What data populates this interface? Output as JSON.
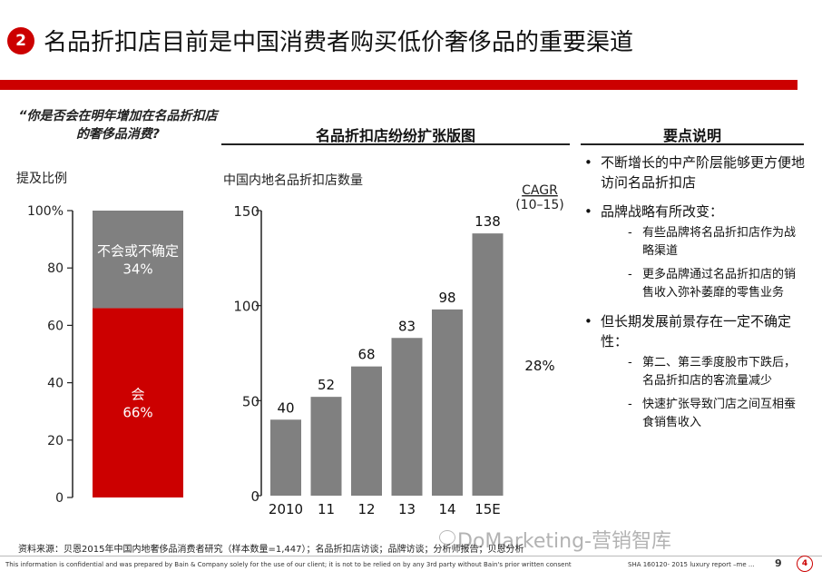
{
  "header": {
    "badge_number": "2",
    "title": "名品折扣店目前是中国消费者购买低价奢侈品的重要渠道"
  },
  "left_panel": {
    "question": "“你是否会在明年增加在名品折扣店的奢侈品消费?",
    "mention_label": "提及比例"
  },
  "middle_panel": {
    "section_title": "名品折扣店纷纷扩张版图",
    "chart_subtitle": "中国内地名品折扣店数量"
  },
  "right_panel": {
    "section_title": "要点说明",
    "bullets": [
      {
        "text": "不断增长的中产阶层能够更方便地访问名品折扣店",
        "subs": []
      },
      {
        "text": "品牌战略有所改变：",
        "subs": [
          "有些品牌将名品折扣店作为战略渠道",
          "更多品牌通过名品折扣店的销售收入弥补萎靡的零售业务"
        ]
      },
      {
        "text": "但长期发展前景存在一定不确定性：",
        "subs": [
          "第二、第三季度股市下跌后，名品折扣店的客流量减少",
          "快速扩张导致门店之间互相蚕食销售收入"
        ]
      }
    ],
    "bullet_symbol": "•",
    "dash_symbol": "-"
  },
  "footer": {
    "source": "资料来源：贝恩2015年中国内地奢侈品消费者研究（样本数量=1,447）；名品折扣店访谈；品牌访谈；分析师报告；贝恩分析",
    "disclaimer": "This information is confidential and was prepared by Bain & Company solely for the use of our client; it is not to be relied on by any 3rd party without Bain's prior written consent",
    "code": "SHA     160120- 2015 luxury report –me ...",
    "page_number": "9",
    "logo_glyph": "4",
    "watermark": "DoMarketing-营销智库"
  },
  "colors": {
    "accent": "#cc0000",
    "neutral_bar": "#808080",
    "text": "#111111"
  },
  "chart_data": [
    {
      "type": "bar",
      "stacked": true,
      "title": "",
      "ylabel": "提及比例",
      "ylim": [
        0,
        100
      ],
      "yticks": [
        "0",
        "20",
        "40",
        "60",
        "80",
        "100%"
      ],
      "segments": [
        {
          "name": "会",
          "value": 66,
          "label": "66%",
          "color": "#cc0000"
        },
        {
          "name": "不会或不确定",
          "value": 34,
          "label": "34%",
          "color": "#808080"
        }
      ]
    },
    {
      "type": "bar",
      "title": "中国内地名品折扣店数量",
      "categories": [
        "2010",
        "11",
        "12",
        "13",
        "14",
        "15E"
      ],
      "values": [
        40,
        52,
        68,
        83,
        98,
        138
      ],
      "ylim": [
        0,
        150
      ],
      "yticks": [
        "0",
        "50",
        "100",
        "150"
      ],
      "cagr_label": "CAGR",
      "cagr_period": "(10–15)",
      "cagr_value": "28%",
      "color": "#808080"
    }
  ]
}
